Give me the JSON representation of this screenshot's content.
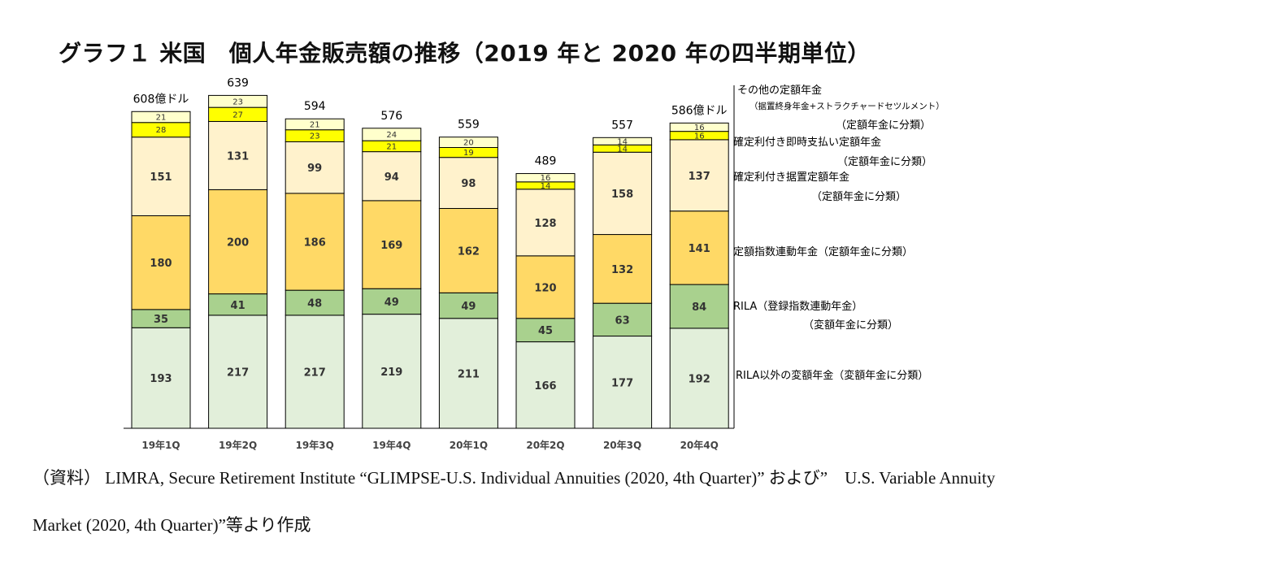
{
  "title": "グラフ１ 米国　個人年金販売額の推移（2019 年と 2020 年の四半期単位）",
  "source_line_1": "（資料） LIMRA, Secure Retirement Institute “GLIMPSE-U.S. Individual Annuities (2020, 4th Quarter)” および”　U.S. Variable Annuity",
  "source_line_2": "Market (2020, 4th Quarter)”等より作成",
  "chart_data": {
    "type": "bar",
    "stacked": true,
    "categories": [
      "19年1Q",
      "19年2Q",
      "19年3Q",
      "19年4Q",
      "20年1Q",
      "20年2Q",
      "20年3Q",
      "20年4Q"
    ],
    "totals": [
      608,
      639,
      594,
      576,
      559,
      489,
      557,
      586
    ],
    "total_labels": [
      "608億ドル",
      "639",
      "594",
      "576",
      "559",
      "489",
      "557",
      "586億ドル"
    ],
    "series": [
      {
        "name": "RILA以外の変額年金（変額年金に分類）",
        "legend": [
          "RILA以外の変額年金（変額年金に分類）"
        ],
        "color": "#e2efda",
        "values": [
          193,
          217,
          217,
          219,
          211,
          166,
          177,
          192
        ]
      },
      {
        "name": "RILA（登録指数連動年金）（変額年金に分類）",
        "legend": [
          "RILA（登録指数連動年金）",
          "（変額年金に分類）"
        ],
        "color": "#a9d18e",
        "values": [
          35,
          41,
          48,
          49,
          49,
          45,
          63,
          84
        ]
      },
      {
        "name": "定額指数連動年金（定額年金に分類）",
        "legend": [
          "定額指数連動年金（定額年金に分類）"
        ],
        "color": "#ffd966",
        "values": [
          180,
          200,
          186,
          169,
          162,
          120,
          132,
          141
        ]
      },
      {
        "name": "確定利付き据置定額年金（定額年金に分類）",
        "legend": [
          "確定利付き据置定額年金",
          "（定額年金に分類）"
        ],
        "color": "#fff2cc",
        "values": [
          151,
          131,
          99,
          94,
          98,
          128,
          158,
          137
        ]
      },
      {
        "name": "確定利付き即時支払い定額年金（定額年金に分類）",
        "legend": [
          "確定利付き即時支払い定額年金",
          "（定額年金に分類）"
        ],
        "color": "#ffff00",
        "values": [
          28,
          27,
          23,
          21,
          19,
          14,
          14,
          16
        ]
      },
      {
        "name": "その他の定額年金（据置終身年金+ストラクチャードセツルメント）（定額年金に分類）",
        "legend": [
          "その他の定額年金",
          "（据置終身年金+ストラクチャードセツルメント）",
          "（定額年金に分類）"
        ],
        "color": "#ffffcc",
        "values": [
          21,
          23,
          21,
          24,
          20,
          16,
          14,
          16
        ]
      }
    ],
    "ylim": [
      0,
      700
    ],
    "grid": false,
    "legend_placement": "right"
  }
}
